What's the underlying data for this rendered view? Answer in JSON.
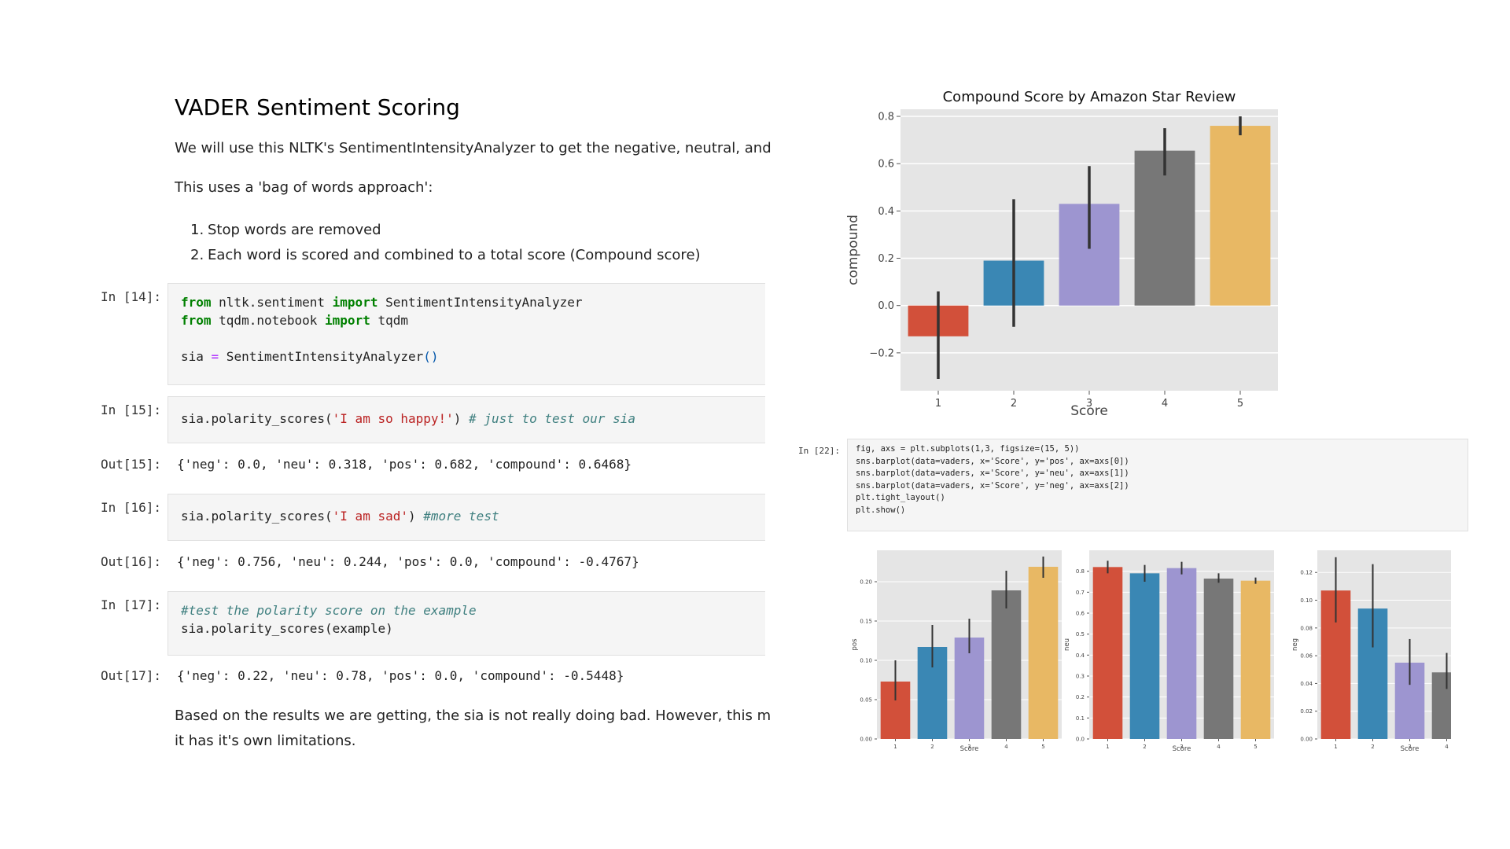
{
  "notebook": {
    "heading": "VADER Sentiment Scoring",
    "para1": "We will use this NLTK's SentimentIntensityAnalyzer to get the negative, neutral, and posi",
    "para2": "This uses a 'bag of words approach':",
    "list": [
      {
        "num": "1.",
        "text": "Stop words are removed"
      },
      {
        "num": "2.",
        "text": "Each word is scored and combined to a total score (Compound score)"
      }
    ],
    "cells": [
      {
        "in_prompt": "In [14]:",
        "lines": [
          [
            {
              "t": "from",
              "c": "kw"
            },
            {
              "t": " nltk.sentiment ",
              "c": ""
            },
            {
              "t": "import",
              "c": "kw"
            },
            {
              "t": " SentimentIntensityAnalyzer",
              "c": ""
            }
          ],
          [
            {
              "t": "from",
              "c": "kw"
            },
            {
              "t": " tqdm.notebook ",
              "c": ""
            },
            {
              "t": "import",
              "c": "kw"
            },
            {
              "t": " tqdm",
              "c": ""
            }
          ],
          [],
          [
            {
              "t": "sia ",
              "c": ""
            },
            {
              "t": "=",
              "c": "op"
            },
            {
              "t": " SentimentIntensityAnalyzer",
              "c": ""
            },
            {
              "t": "()",
              "c": "paren"
            }
          ]
        ]
      },
      {
        "in_prompt": "In [15]:",
        "lines": [
          [
            {
              "t": "sia.polarity_scores(",
              "c": ""
            },
            {
              "t": "'I am so happy!'",
              "c": "str"
            },
            {
              "t": ") ",
              "c": ""
            },
            {
              "t": "# just to test our sia",
              "c": "cmt"
            }
          ]
        ],
        "out_prompt": "Out[15]:",
        "output": "{'neg': 0.0, 'neu': 0.318, 'pos': 0.682, 'compound': 0.6468}"
      },
      {
        "in_prompt": "In [16]:",
        "lines": [
          [
            {
              "t": "sia.polarity_scores(",
              "c": ""
            },
            {
              "t": "'I am sad'",
              "c": "str"
            },
            {
              "t": ") ",
              "c": ""
            },
            {
              "t": "#more test",
              "c": "cmt"
            }
          ]
        ],
        "out_prompt": "Out[16]:",
        "output": "{'neg': 0.756, 'neu': 0.244, 'pos': 0.0, 'compound': -0.4767}"
      },
      {
        "in_prompt": "In [17]:",
        "lines": [
          [
            {
              "t": "#test the polarity score on the example",
              "c": "cmt"
            }
          ],
          [
            {
              "t": "sia.polarity_scores(example)",
              "c": ""
            }
          ]
        ],
        "out_prompt": "Out[17]:",
        "output": "{'neg': 0.22, 'neu': 0.78, 'pos': 0.0, 'compound': -0.5448}"
      }
    ],
    "para3_line1": "Based on the results we are getting, the sia is not really doing bad. However, this model",
    "para3_line2": "it has it's own limitations."
  },
  "right_cell": {
    "in_prompt": "In [22]:",
    "lines": [
      "fig, axs = plt.subplots(1,3, figsize=(15, 5))",
      "sns.barplot(data=vaders, x='Score', y='pos', ax=axs[0])",
      "sns.barplot(data=vaders, x='Score', y='neu', ax=axs[1])",
      "sns.barplot(data=vaders, x='Score', y='neg', ax=axs[2])",
      "plt.tight_layout()",
      "plt.show()"
    ]
  },
  "colors": {
    "bar_palette": [
      "#d2503a",
      "#3a87b4",
      "#9d95d0",
      "#777777",
      "#e8b864"
    ],
    "plot_bg": "#e5e5e5",
    "grid": "#ffffff",
    "errbar": "#333333"
  },
  "chart_data": [
    {
      "type": "bar",
      "title": "Compound Score by Amazon Star Review",
      "xlabel": "Score",
      "ylabel": "compound",
      "categories": [
        "1",
        "2",
        "3",
        "4",
        "5"
      ],
      "values": [
        -0.13,
        0.19,
        0.43,
        0.655,
        0.76
      ],
      "err_low": [
        -0.31,
        -0.09,
        0.24,
        0.55,
        0.72
      ],
      "err_high": [
        0.06,
        0.45,
        0.59,
        0.75,
        0.8
      ],
      "ylim": [
        -0.36,
        0.83
      ],
      "yticks": [
        -0.2,
        0.0,
        0.2,
        0.4,
        0.6,
        0.8
      ],
      "ytick_labels": [
        "−0.2",
        "0.0",
        "0.2",
        "0.4",
        "0.6",
        "0.8"
      ],
      "grid": true
    },
    {
      "type": "bar",
      "title": "",
      "xlabel": "Score",
      "ylabel": "pos",
      "categories": [
        "1",
        "2",
        "3",
        "4",
        "5"
      ],
      "values": [
        0.073,
        0.117,
        0.129,
        0.189,
        0.219
      ],
      "err_low": [
        0.049,
        0.091,
        0.109,
        0.166,
        0.205
      ],
      "err_high": [
        0.1,
        0.145,
        0.153,
        0.214,
        0.232
      ],
      "ylim": [
        0,
        0.24
      ],
      "yticks": [
        0.0,
        0.05,
        0.1,
        0.15,
        0.2
      ],
      "ytick_labels": [
        "0.00",
        "0.05",
        "0.10",
        "0.15",
        "0.20"
      ],
      "grid": true
    },
    {
      "type": "bar",
      "title": "",
      "xlabel": "Score",
      "ylabel": "neu",
      "categories": [
        "1",
        "2",
        "3",
        "4",
        "5"
      ],
      "values": [
        0.82,
        0.79,
        0.815,
        0.765,
        0.755
      ],
      "err_low": [
        0.79,
        0.75,
        0.785,
        0.745,
        0.74
      ],
      "err_high": [
        0.85,
        0.83,
        0.845,
        0.79,
        0.77
      ],
      "ylim": [
        0,
        0.9
      ],
      "yticks": [
        0.0,
        0.1,
        0.2,
        0.3,
        0.4,
        0.5,
        0.6,
        0.7,
        0.8
      ],
      "ytick_labels": [
        "0.0",
        "0.1",
        "0.2",
        "0.3",
        "0.4",
        "0.5",
        "0.6",
        "0.7",
        "0.8"
      ],
      "grid": true
    },
    {
      "type": "bar",
      "title": "",
      "xlabel": "Score",
      "ylabel": "neg",
      "categories": [
        "1",
        "2",
        "3",
        "4"
      ],
      "values": [
        0.107,
        0.094,
        0.055,
        0.048
      ],
      "err_low": [
        0.084,
        0.066,
        0.039,
        0.036
      ],
      "err_high": [
        0.131,
        0.126,
        0.072,
        0.062
      ],
      "ylim": [
        0,
        0.136
      ],
      "yticks": [
        0.0,
        0.02,
        0.04,
        0.06,
        0.08,
        0.1,
        0.12
      ],
      "ytick_labels": [
        "0.00",
        "0.02",
        "0.04",
        "0.06",
        "0.08",
        "0.10",
        "0.12"
      ],
      "grid": true
    }
  ]
}
